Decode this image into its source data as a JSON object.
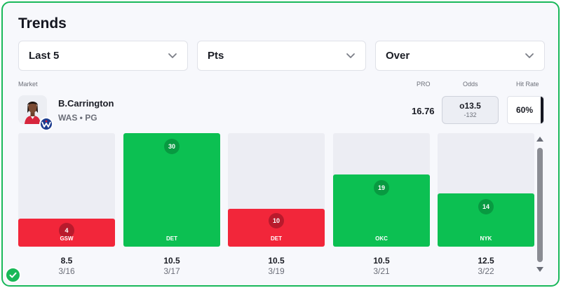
{
  "title": "Trends",
  "filters": {
    "games": "Last 5",
    "stat": "Pts",
    "side": "Over"
  },
  "headers": {
    "market": "Market",
    "pro": "PRO",
    "odds": "Odds",
    "hit_rate": "Hit Rate"
  },
  "player": {
    "name": "B.Carrington",
    "team": "WAS",
    "position": "PG",
    "meta": "WAS • PG"
  },
  "market": {
    "pro": "16.76",
    "odds_line": "o13.5",
    "odds_price": "-132",
    "hit_rate": "60%"
  },
  "colors": {
    "over": "#0cc052",
    "under": "#f2263a",
    "accent": "#19b85a"
  },
  "icons": {
    "dropdown": "chevron-down-icon",
    "status": "check-circle-icon"
  },
  "chart_data": {
    "type": "bar",
    "ylim": [
      0,
      30
    ],
    "games": [
      {
        "value": "4",
        "opponent": "GSW",
        "line": "8.5",
        "date": "3/16",
        "result": "under"
      },
      {
        "value": "30",
        "opponent": "DET",
        "line": "10.5",
        "date": "3/17",
        "result": "over"
      },
      {
        "value": "10",
        "opponent": "DET",
        "line": "10.5",
        "date": "3/19",
        "result": "under"
      },
      {
        "value": "19",
        "opponent": "OKC",
        "line": "10.5",
        "date": "3/21",
        "result": "over"
      },
      {
        "value": "14",
        "opponent": "NYK",
        "line": "12.5",
        "date": "3/22",
        "result": "over"
      }
    ]
  }
}
